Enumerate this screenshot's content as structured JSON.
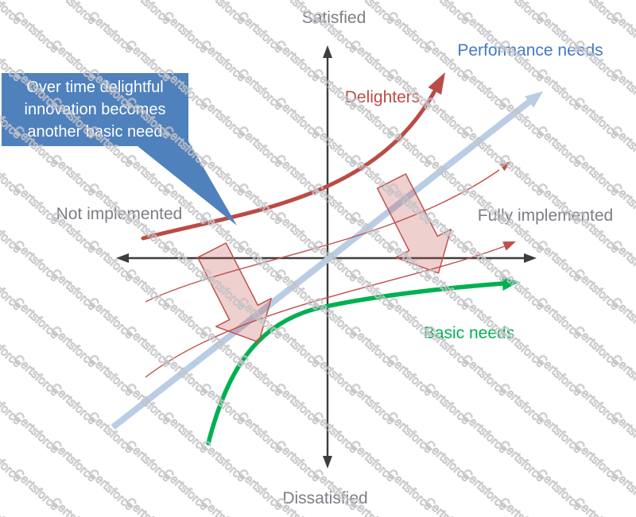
{
  "axis_labels": {
    "top": "Satisfied",
    "bottom": "Dissatisfied",
    "left": "Not implemented",
    "right": "Fully implemented"
  },
  "curve_labels": {
    "performance": "Performance needs",
    "delighters": "Delighters",
    "basic": "Basic needs"
  },
  "callout": {
    "lines": [
      "Over time delightful",
      "innovation becomes",
      "another basic need"
    ]
  },
  "watermark": {
    "text": "Certsforce"
  },
  "colors": {
    "callout_bg": "#4f81bd",
    "delighters_curve": "#bb4b46",
    "performance_line": "#b9cde5",
    "performance_text": "#4478c4",
    "basic_curve": "#00b050",
    "shift_arrow_stroke": "#c0504d",
    "axis": "#3d3d3d",
    "gray_label": "#7d7d85",
    "watermark_gray": "#c3c3c7"
  }
}
